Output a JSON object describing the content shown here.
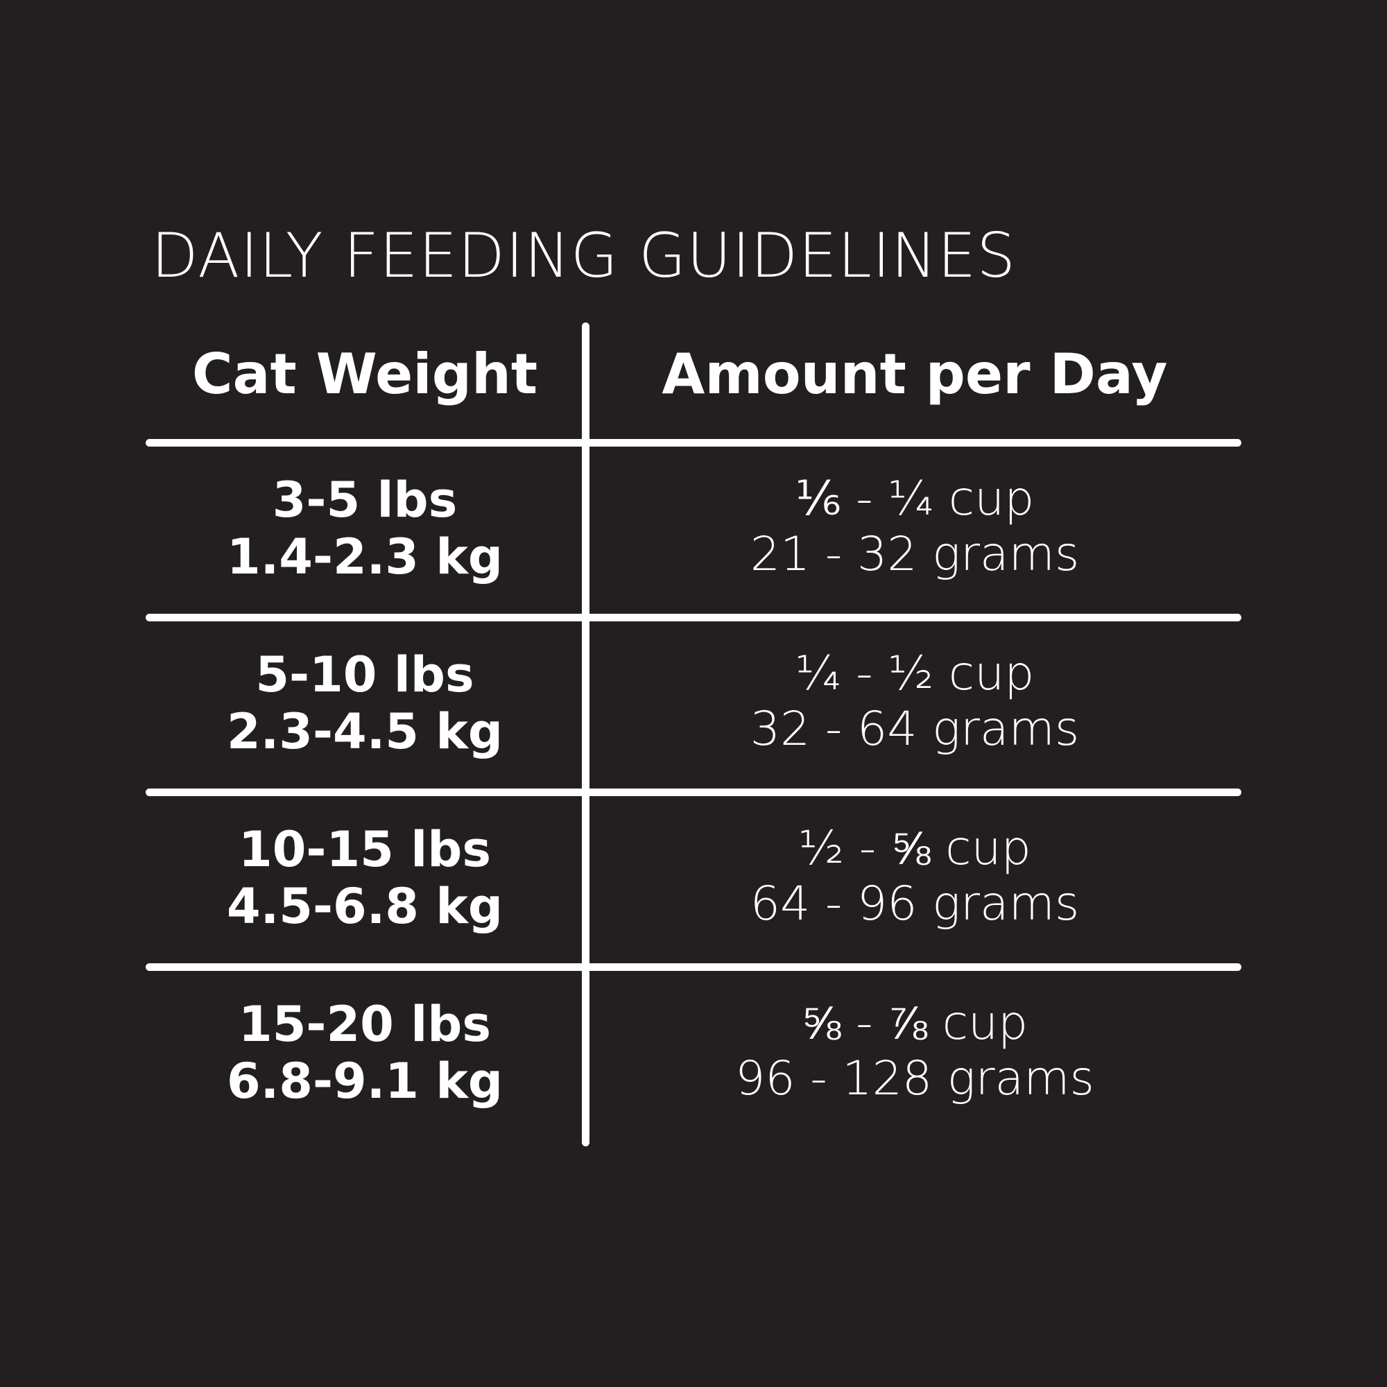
{
  "title": "DAILY FEEDING GUIDELINES",
  "table": {
    "headers": [
      "Cat Weight",
      "Amount per Day"
    ],
    "rows": [
      {
        "lbs": "3-5 lbs",
        "kg": "1.4-2.3 kg",
        "cups": "⅙ - ¼ cup",
        "grams": "21 - 32 grams"
      },
      {
        "lbs": "5-10 lbs",
        "kg": "2.3-4.5 kg",
        "cups": "¼ - ½ cup",
        "grams": "32 - 64 grams"
      },
      {
        "lbs": "10-15 lbs",
        "kg": "4.5-6.8 kg",
        "cups": "½ - ⅝ cup",
        "grams": "64 - 96 grams"
      },
      {
        "lbs": "15-20 lbs",
        "kg": "6.8-9.1 kg",
        "cups": "⅝ - ⅞ cup",
        "grams": "96 - 128 grams"
      }
    ]
  },
  "colors": {
    "background": "#231f20",
    "foreground": "#ffffff"
  }
}
